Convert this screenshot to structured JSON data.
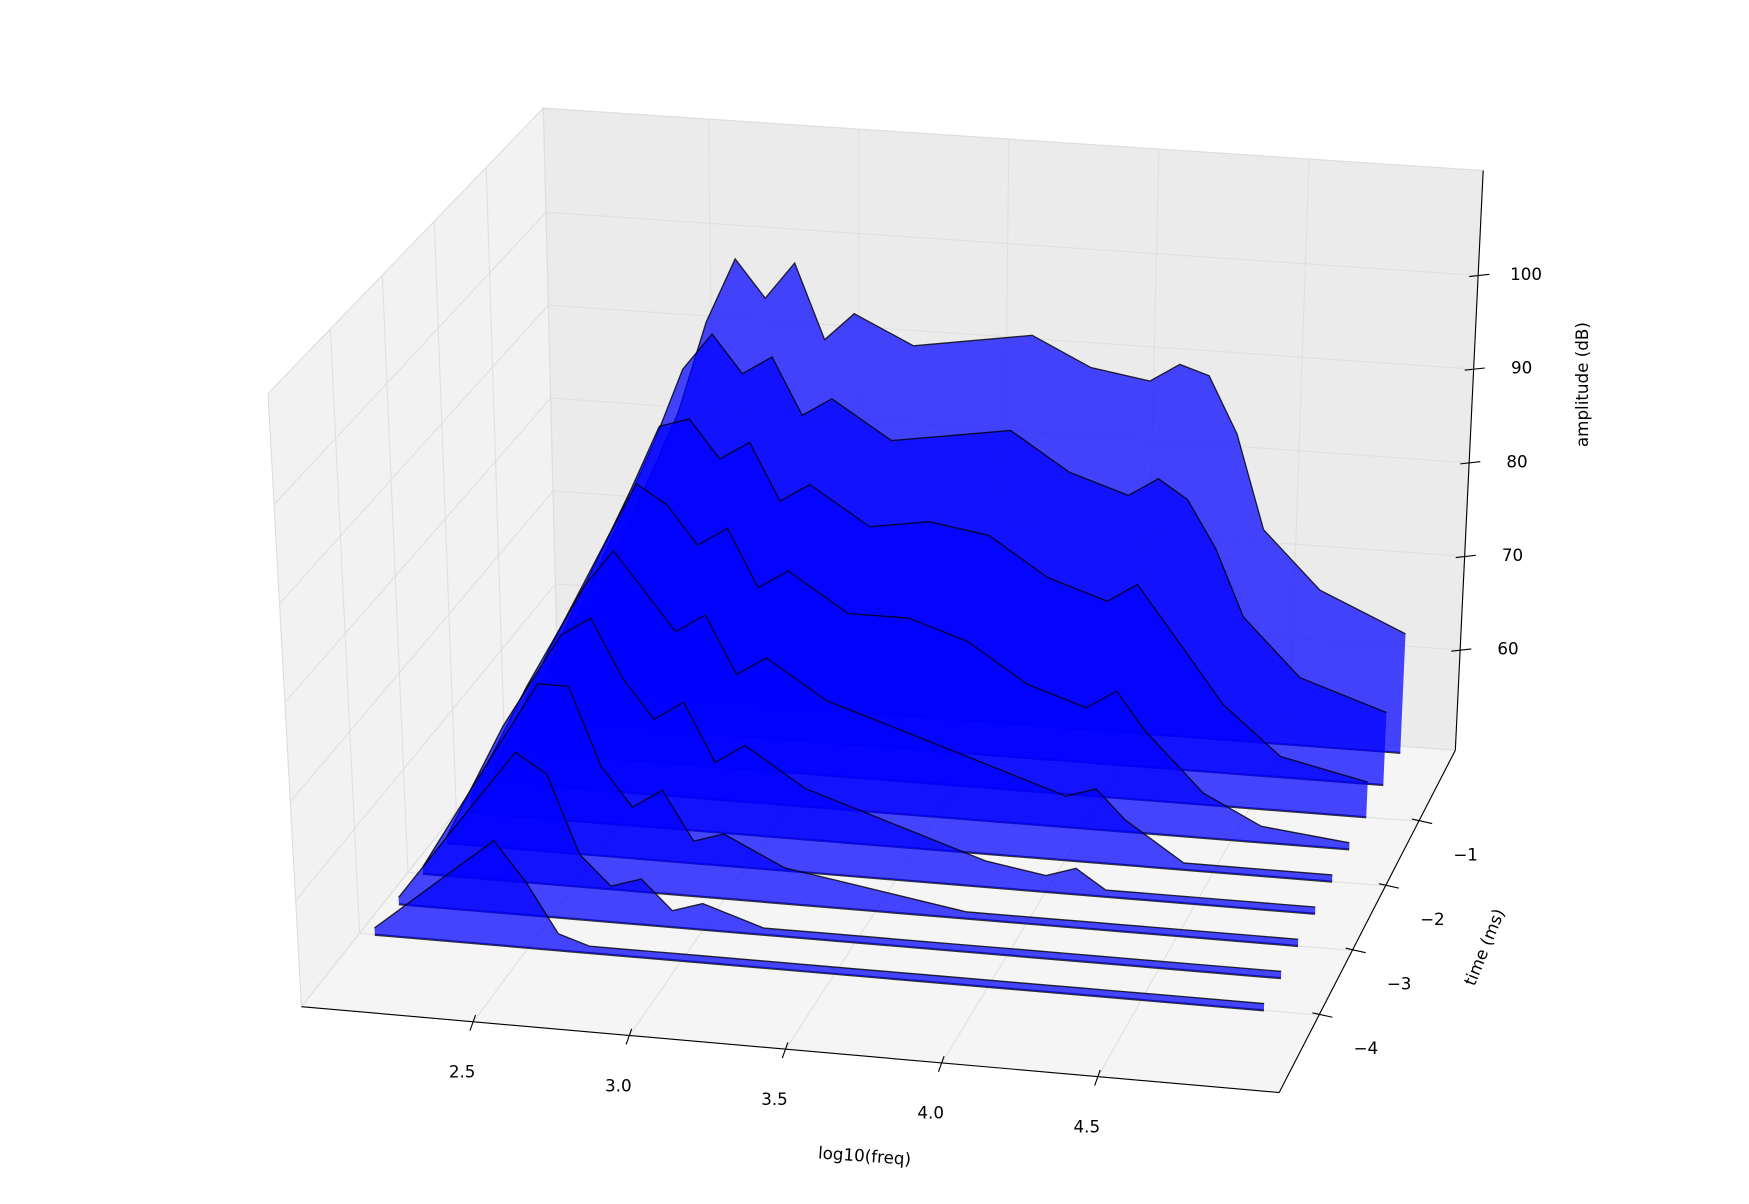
{
  "chart_data": {
    "type": "waterfall3d",
    "xlabel": "log10(freq)",
    "ylabel": "time (ms)",
    "zlabel": "amplitude (dB)",
    "color": "#0000ff",
    "x": [
      2.0,
      2.2,
      2.4,
      2.5,
      2.6,
      2.7,
      2.8,
      2.9,
      3.0,
      3.2,
      3.4,
      3.6,
      3.8,
      4.0,
      4.1,
      4.2,
      4.3,
      4.4,
      4.6,
      4.9
    ],
    "series": [
      {
        "time": 0,
        "values": [
          52,
          66,
          80,
          90,
          97,
          93,
          97,
          89,
          92,
          89,
          90,
          91,
          88,
          87,
          89,
          88,
          82,
          72,
          66,
          62
        ]
      },
      {
        "time": -0.5,
        "values": [
          52,
          66,
          80,
          88,
          92,
          88,
          90,
          84,
          86,
          82,
          83,
          84,
          80,
          78,
          80,
          78,
          73,
          66,
          60,
          57
        ]
      },
      {
        "time": -1,
        "values": [
          51,
          65,
          78,
          85,
          86,
          82,
          84,
          78,
          80,
          76,
          77,
          76,
          72,
          70,
          72,
          68,
          64,
          60,
          55,
          53
        ]
      },
      {
        "time": -1.5,
        "values": [
          51,
          64,
          76,
          82,
          80,
          76,
          78,
          72,
          74,
          70,
          70,
          68,
          64,
          62,
          64,
          60,
          57,
          54,
          51,
          50
        ]
      },
      {
        "time": -2,
        "values": [
          51,
          63,
          74,
          78,
          74,
          70,
          72,
          66,
          68,
          64,
          62,
          60,
          58,
          56,
          57,
          54,
          52,
          50,
          50,
          50
        ]
      },
      {
        "time": -2.5,
        "values": [
          50,
          62,
          72,
          74,
          68,
          64,
          66,
          60,
          62,
          58,
          56,
          54,
          52,
          51,
          52,
          50,
          50,
          50,
          50,
          50
        ]
      },
      {
        "time": -3,
        "values": [
          50,
          60,
          70,
          70,
          62,
          58,
          60,
          55,
          56,
          53,
          52,
          51,
          50,
          50,
          50,
          50,
          50,
          50,
          50,
          50
        ]
      },
      {
        "time": -3.5,
        "values": [
          50,
          58,
          66,
          64,
          56,
          53,
          54,
          51,
          52,
          50,
          50,
          50,
          50,
          50,
          50,
          50,
          50,
          50,
          50,
          50
        ]
      },
      {
        "time": -4,
        "values": [
          50,
          55,
          60,
          56,
          51,
          50,
          50,
          50,
          50,
          50,
          50,
          50,
          50,
          50,
          50,
          50,
          50,
          50,
          50,
          50
        ]
      }
    ],
    "xlim": [
      1.95,
      5.08
    ],
    "ylim": [
      -5.2,
      0.1
    ],
    "zlim": [
      49.3,
      111.2
    ],
    "xticks": [
      2.5,
      {
        "value": 3,
        "label": "3.0"
      },
      3.5,
      {
        "value": 4,
        "label": "4.0"
      },
      4.5
    ],
    "yticks": [
      {
        "value": -1,
        "label": "−1"
      },
      {
        "value": -2,
        "label": "−2"
      },
      {
        "value": -3,
        "label": "−3"
      },
      {
        "value": -4,
        "label": "−4"
      }
    ],
    "zticks": [
      60,
      70,
      80,
      90,
      100
    ],
    "grid": true
  }
}
